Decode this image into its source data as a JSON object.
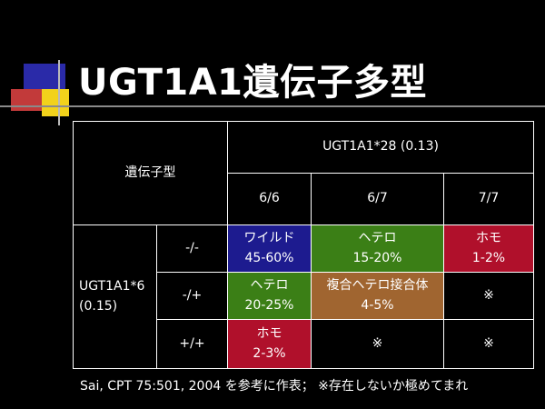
{
  "title": "UGT1A1遺伝子多型",
  "table": {
    "genotype_header": "遺伝子型",
    "col_group_header": "UGT1A1*28 (0.13)",
    "col_genotypes": [
      "6/6",
      "6/7",
      "7/7"
    ],
    "row_group_line1": "UGT1A1*6",
    "row_group_line2": "(0.15)",
    "rows": [
      {
        "genotype": "-/-",
        "cells": [
          {
            "label": "ワイルド",
            "value": "45-60%"
          },
          {
            "label": "ヘテロ",
            "value": "15-20%"
          },
          {
            "label": "ホモ",
            "value": "1-2%"
          }
        ]
      },
      {
        "genotype": "-/+",
        "cells": [
          {
            "label": "ヘテロ",
            "value": "20-25%"
          },
          {
            "label": "複合ヘテロ接合体",
            "value": "4-5%"
          },
          {
            "symbol": "※"
          }
        ]
      },
      {
        "genotype": "+/+",
        "cells": [
          {
            "label": "ホモ",
            "value": "2-3%"
          },
          {
            "symbol": "※"
          },
          {
            "symbol": "※"
          }
        ]
      }
    ]
  },
  "footnote": "Sai, CPT 75:501, 2004 を参考に作表； ※存在しないか極めてまれ",
  "colors": {
    "background": "#000000",
    "wild": "#1d1b8f",
    "hetero": "#3b7f16",
    "homo": "#b0102b",
    "compound_hetero": "#a06530"
  }
}
